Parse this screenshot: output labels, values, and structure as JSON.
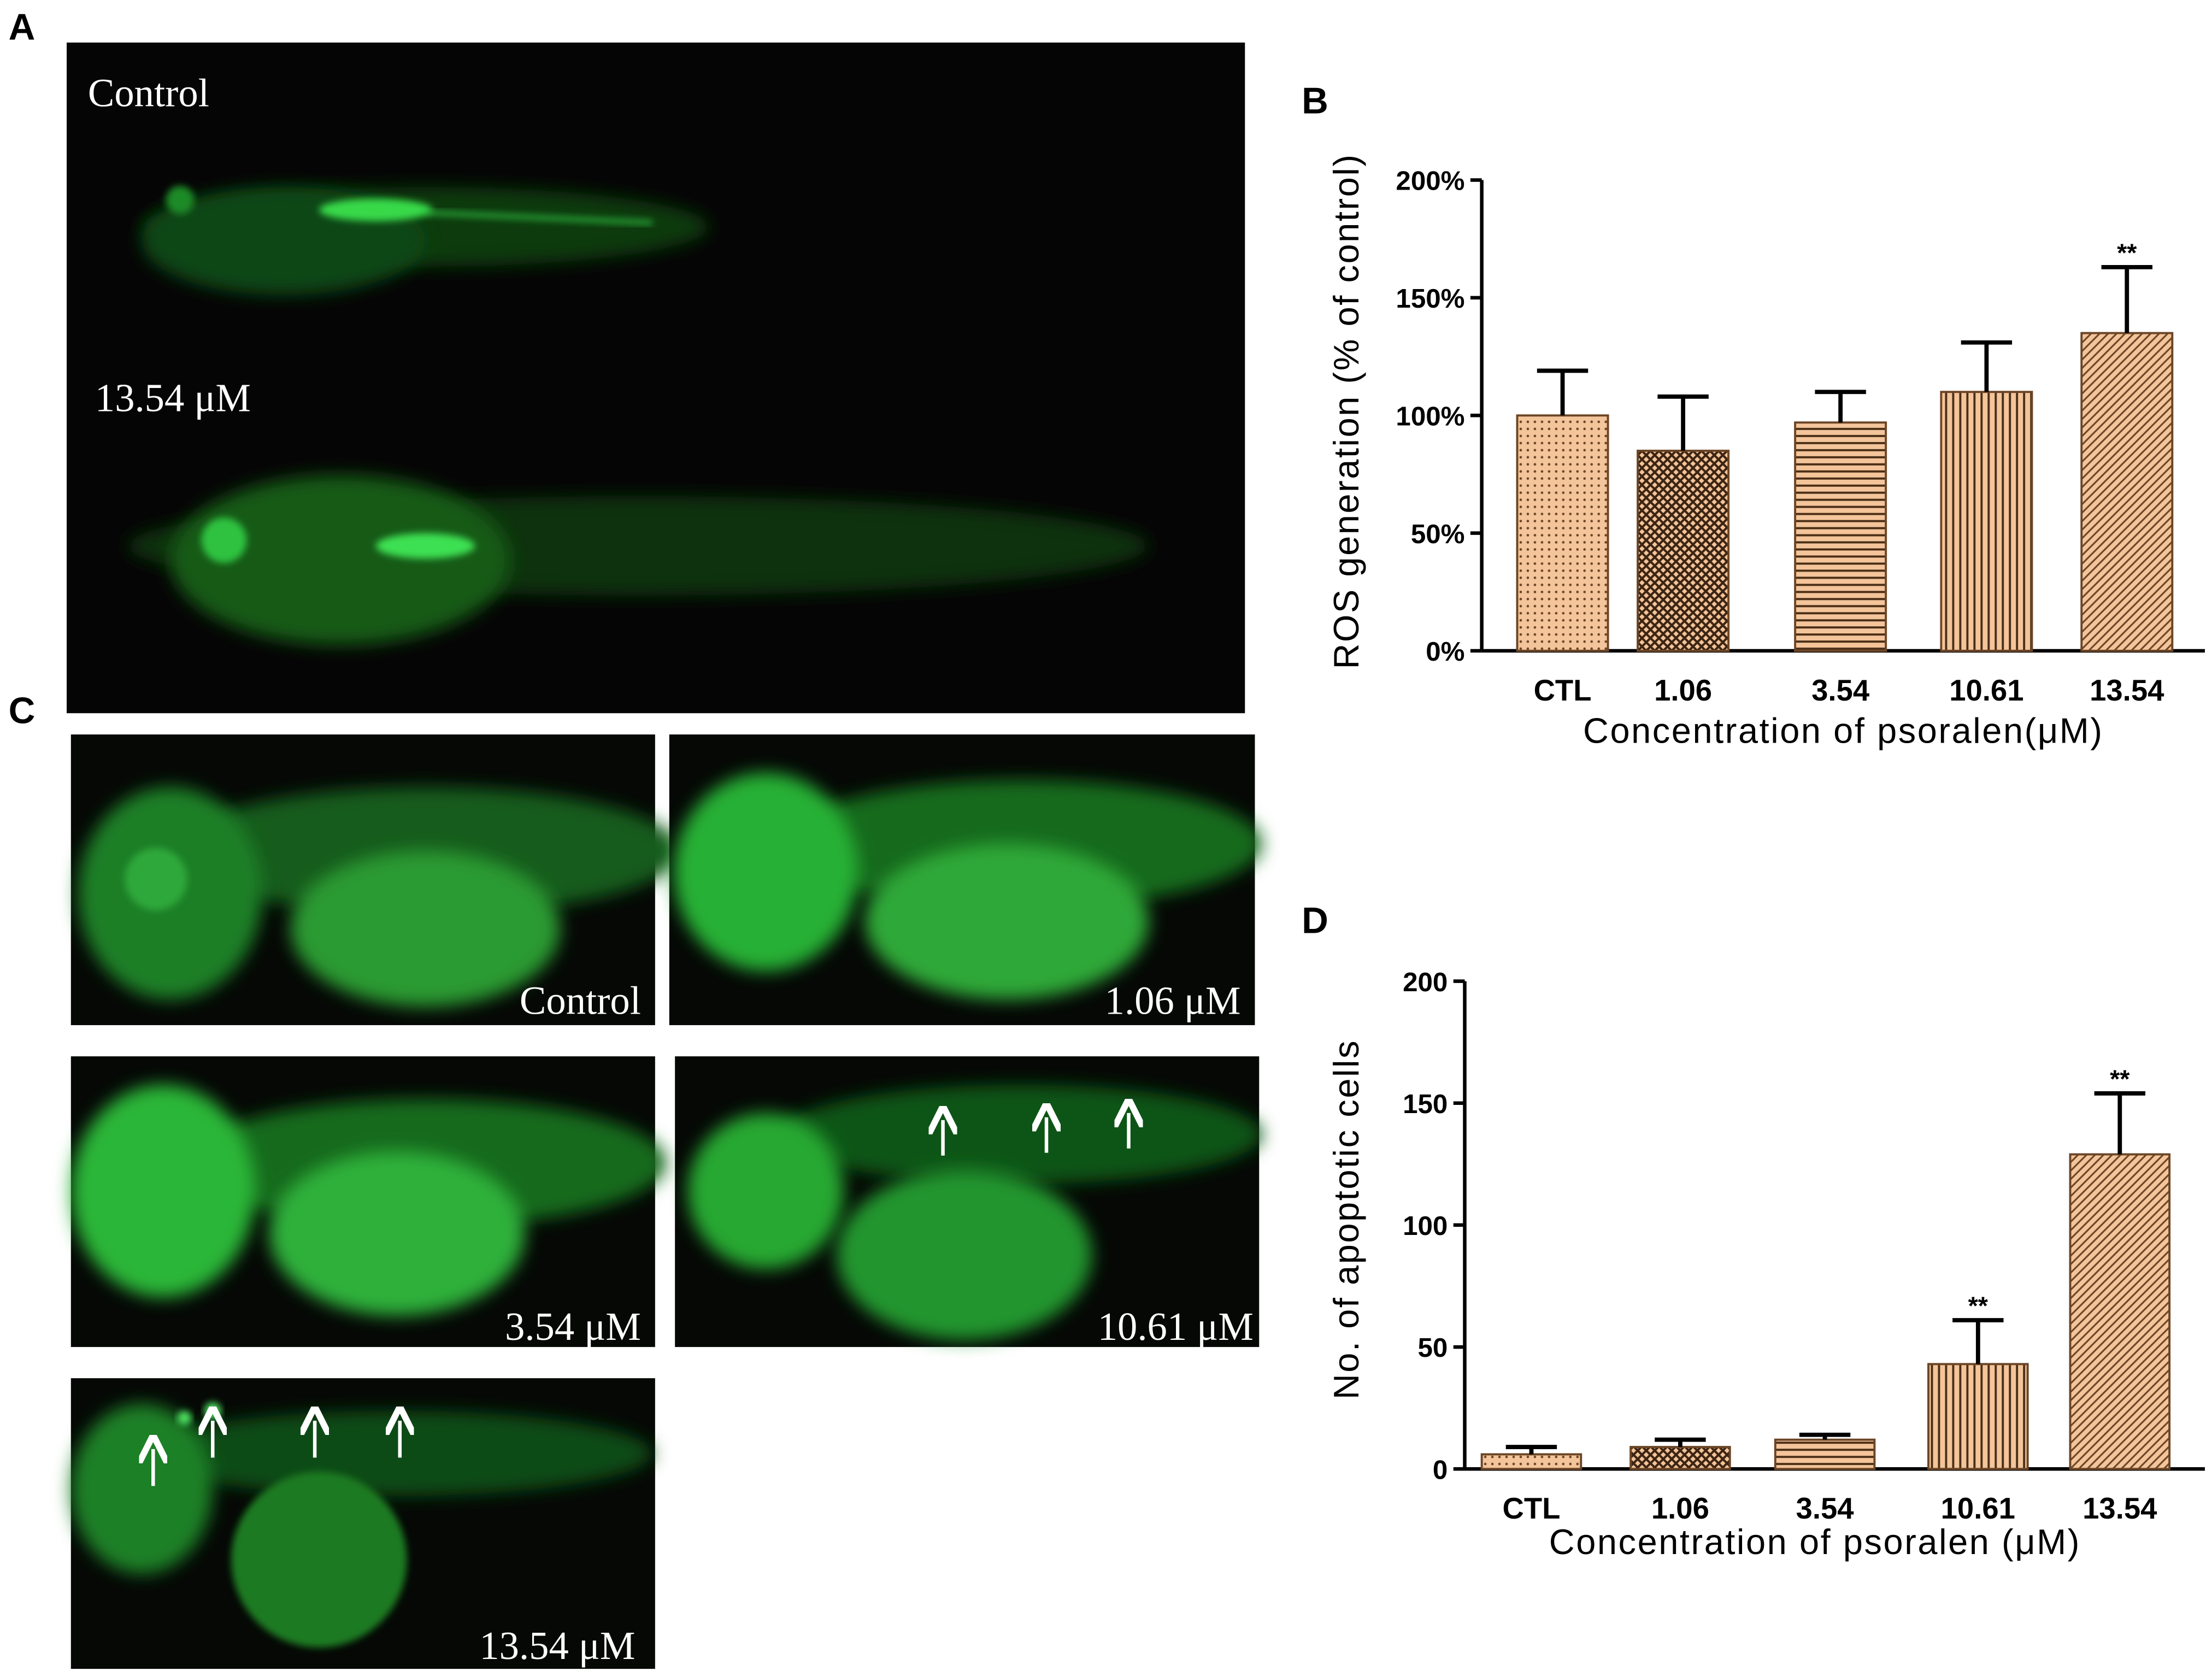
{
  "figure": {
    "panel_A": {
      "label": "A",
      "captions": [
        "Control",
        "13.54 μM"
      ]
    },
    "panel_C": {
      "label": "C",
      "captions": [
        "Control",
        "1.06 μM",
        "3.54 μM",
        "10.61 μM",
        "13.54 μM"
      ]
    }
  },
  "chart_data": [
    {
      "type": "bar",
      "panel_label": "B",
      "x_label": "Concentration of psoralen(μM)",
      "y_label": "ROS generation (% of control)",
      "categories": [
        "CTL",
        "1.06",
        "3.54",
        "10.61",
        "13.54"
      ],
      "values": [
        100,
        85,
        97,
        110,
        135
      ],
      "errors": [
        19,
        23,
        13,
        21,
        28
      ],
      "annotations": [
        null,
        null,
        null,
        null,
        "**"
      ],
      "color": "#f4c49a",
      "edge_color": "#6b4526",
      "ylim": [
        0,
        200
      ],
      "yticks": [
        {
          "value": 0,
          "label": "0%"
        },
        {
          "value": 50,
          "label": "50%"
        },
        {
          "value": 100,
          "label": "100%"
        },
        {
          "value": 150,
          "label": "150%"
        },
        {
          "value": 200,
          "label": "200%"
        }
      ]
    },
    {
      "type": "bar",
      "panel_label": "D",
      "x_label": "Concentration of psoralen (μM)",
      "y_label": "No. of apoptotic cells",
      "categories": [
        "CTL",
        "1.06",
        "3.54",
        "10.61",
        "13.54"
      ],
      "values": [
        6,
        9,
        12,
        43,
        129
      ],
      "errors": [
        3,
        3,
        2,
        18,
        25
      ],
      "annotations": [
        null,
        null,
        null,
        "**",
        "**"
      ],
      "color": "#f4c49a",
      "edge_color": "#6b4526",
      "ylim": [
        0,
        200
      ],
      "yticks": [
        0,
        50,
        100,
        150,
        200
      ]
    }
  ]
}
